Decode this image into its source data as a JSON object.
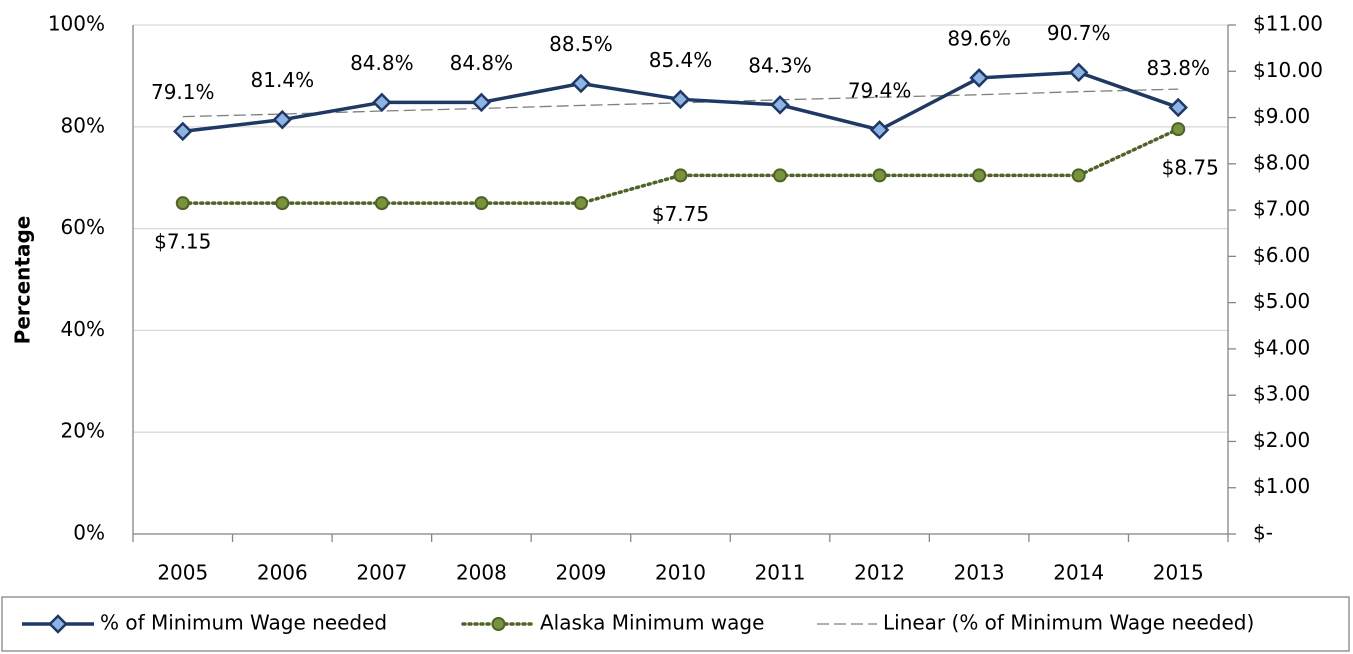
{
  "chart_data": {
    "type": "line",
    "y_label": "Percentage",
    "categories": [
      "2005",
      "2006",
      "2007",
      "2008",
      "2009",
      "2010",
      "2011",
      "2012",
      "2013",
      "2014",
      "2015"
    ],
    "series": [
      {
        "name": "% of Minimum Wage needed",
        "color": "#1f3864",
        "marker": "diamond",
        "marker_color": "#8eb4e3",
        "style": "solid",
        "axis": "y",
        "values": [
          79.1,
          81.4,
          84.8,
          84.8,
          88.5,
          85.4,
          84.3,
          79.4,
          89.6,
          90.7,
          83.8
        ],
        "value_labels": [
          "79.1%",
          "81.4%",
          "84.8%",
          "84.8%",
          "88.5%",
          "85.4%",
          "84.3%",
          "79.4%",
          "89.6%",
          "90.7%",
          "83.8%"
        ]
      },
      {
        "name": "Alaska Minimum wage",
        "color": "#4f6228",
        "marker": "circle",
        "marker_color": "#77933c",
        "style": "dotted",
        "axis": "y2",
        "values": [
          7.15,
          7.15,
          7.15,
          7.15,
          7.15,
          7.75,
          7.75,
          7.75,
          7.75,
          7.75,
          8.75
        ],
        "value_labels": [
          "$7.15",
          null,
          null,
          null,
          null,
          "$7.75",
          null,
          null,
          null,
          null,
          "$8.75"
        ]
      },
      {
        "name": "Linear (% of Minimum Wage needed)",
        "color": "#7f7f7f",
        "marker": "none",
        "style": "dashed",
        "axis": "y",
        "values": [
          82.0,
          82.5,
          83.1,
          83.6,
          84.2,
          84.7,
          85.3,
          85.8,
          86.3,
          86.9,
          87.4
        ]
      }
    ],
    "ylim": [
      0,
      100
    ],
    "yticks": [
      {
        "value": 0,
        "label": "0%"
      },
      {
        "value": 20,
        "label": "20%"
      },
      {
        "value": 40,
        "label": "40%"
      },
      {
        "value": 60,
        "label": "60%"
      },
      {
        "value": 80,
        "label": "80%"
      },
      {
        "value": 100,
        "label": "100%"
      }
    ],
    "y2lim": [
      0,
      11
    ],
    "y2ticks": [
      {
        "value": 0,
        "label": "$-"
      },
      {
        "value": 1,
        "label": "$1.00"
      },
      {
        "value": 2,
        "label": "$2.00"
      },
      {
        "value": 3,
        "label": "$3.00"
      },
      {
        "value": 4,
        "label": "$4.00"
      },
      {
        "value": 5,
        "label": "$5.00"
      },
      {
        "value": 6,
        "label": "$6.00"
      },
      {
        "value": 7,
        "label": "$7.00"
      },
      {
        "value": 8,
        "label": "$8.00"
      },
      {
        "value": 9,
        "label": "$9.00"
      },
      {
        "value": 10,
        "label": "$10.00"
      },
      {
        "value": 11,
        "label": "$11.00"
      }
    ],
    "grid": true,
    "legend": "bottom"
  }
}
